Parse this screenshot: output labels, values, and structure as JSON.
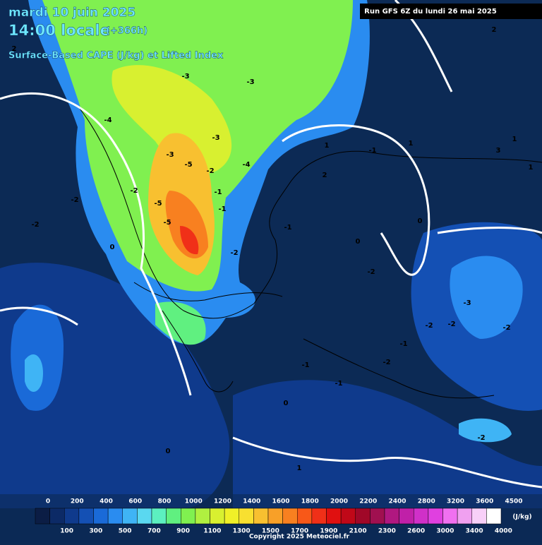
{
  "header": {
    "date": "mardi 10 juin 2025",
    "time": "14:00 locale",
    "lead": "(+366h)",
    "subtitle": "Surface-Based CAPE (J/kg) et Lifted Index",
    "run": "Run GFS 6Z du lundi 26 mai 2025"
  },
  "colorbar": {
    "top_labels": [
      "0",
      "200",
      "400",
      "600",
      "800",
      "1000",
      "1200",
      "1400",
      "1600",
      "1800",
      "2000",
      "2200",
      "2400",
      "2800",
      "3200",
      "3600",
      "4500"
    ],
    "bottom_labels": [
      "100",
      "300",
      "500",
      "700",
      "900",
      "1100",
      "1300",
      "1500",
      "1700",
      "1900",
      "2100",
      "2300",
      "2600",
      "3000",
      "3400",
      "4000"
    ],
    "unit": "(J/kg)",
    "colors": [
      "#0b1d45",
      "#0c2a66",
      "#0f3a8c",
      "#1450b4",
      "#1a6ad8",
      "#2a8cf0",
      "#3fb4f5",
      "#5ad8f0",
      "#5cf0c0",
      "#60f080",
      "#80f050",
      "#b0f040",
      "#d8f030",
      "#f0f028",
      "#f8e030",
      "#f8c030",
      "#f8a028",
      "#f88020",
      "#f85818",
      "#f03018",
      "#e01010",
      "#c00818",
      "#a00828",
      "#a01050",
      "#b01880",
      "#c020a8",
      "#d030c8",
      "#e040e0",
      "#f070f0",
      "#f0a0f0",
      "#f8d0f8",
      "#ffffff"
    ]
  },
  "contour_labels": [
    "-3",
    "-3",
    "-4",
    "-3",
    "-3",
    "-5",
    "-2",
    "-4",
    "-2",
    "-5",
    "-5",
    "-1",
    "-1",
    "-2",
    "0",
    "-2",
    "1",
    "-1",
    "1",
    "2",
    "3",
    "1",
    "-1",
    "0",
    "-2",
    "-3",
    "-2",
    "-2",
    "-2",
    "-1",
    "-2",
    "-1",
    "0",
    "-1",
    "0",
    "-2",
    "0",
    "1",
    "2",
    "-2",
    "2",
    "1"
  ],
  "copyright": "Copyright 2025 Meteociel.fr"
}
